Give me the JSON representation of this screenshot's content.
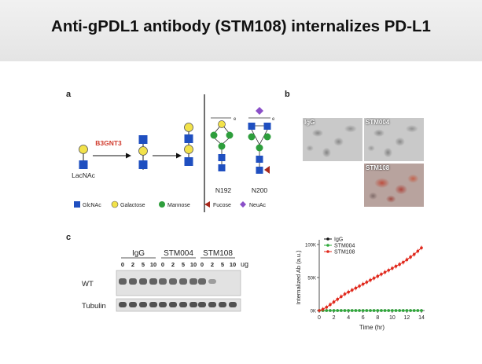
{
  "title": "Anti-gPDL1 antibody (STM108) internalizes PD-L1",
  "panel_a": {
    "label": "a",
    "enzyme": "B3GNT3",
    "substrate": "LacNAc",
    "sites": [
      "N192",
      "N200"
    ],
    "legend": [
      {
        "name": "GlcNAc",
        "color": "#1f4fc0",
        "icon": "square"
      },
      {
        "name": "Galactose",
        "color": "#f2e24a",
        "icon": "circle"
      },
      {
        "name": "Mannose",
        "color": "#2e9e3c",
        "icon": "circle"
      },
      {
        "name": "Fucose",
        "color": "#a8281c",
        "icon": "triangle"
      },
      {
        "name": "NeuAc",
        "color": "#8a4fc8",
        "icon": "diamond"
      }
    ]
  },
  "panel_b": {
    "label": "b",
    "images": [
      "IgG",
      "STM004",
      "STM108"
    ]
  },
  "panel_c": {
    "label": "c",
    "blot": {
      "groups": [
        "IgG",
        "STM004",
        "STM108"
      ],
      "doses": [
        "0",
        "2",
        "5",
        "10"
      ],
      "unit": "ug",
      "rows": [
        "WT",
        "Tubulin"
      ]
    }
  },
  "chart_data": {
    "type": "line",
    "ylabel": "Internalized Ab (a.u.)",
    "xlabel": "Time (hr)",
    "xlim": [
      0,
      14
    ],
    "ylim": [
      0,
      100000
    ],
    "xticks": [
      "0",
      "2",
      "4",
      "6",
      "8",
      "10",
      "12",
      "14"
    ],
    "yticks": [
      "0K",
      "50K",
      "100K"
    ],
    "x": [
      0,
      0.5,
      1,
      1.5,
      2,
      2.5,
      3,
      3.5,
      4,
      4.5,
      5,
      5.5,
      6,
      6.5,
      7,
      7.5,
      8,
      8.5,
      9,
      9.5,
      10,
      10.5,
      11,
      11.5,
      12,
      12.5,
      13,
      13.5,
      14
    ],
    "series": [
      {
        "name": "IgG",
        "color": "#111111",
        "values": [
          0,
          0,
          0,
          0,
          0,
          0,
          0,
          0,
          0,
          0,
          0,
          0,
          0,
          0,
          0,
          0,
          0,
          0,
          0,
          0,
          0,
          0,
          0,
          0,
          0,
          0,
          0,
          0,
          0
        ]
      },
      {
        "name": "STM004",
        "color": "#2eaa3a",
        "values": [
          0,
          0,
          0,
          0,
          0,
          0,
          0,
          0,
          0,
          0,
          0,
          0,
          0,
          0,
          0,
          0,
          0,
          0,
          0,
          0,
          0,
          0,
          0,
          0,
          0,
          0,
          0,
          0,
          0
        ]
      },
      {
        "name": "STM108",
        "color": "#e0281c",
        "values": [
          0,
          2000,
          5000,
          9000,
          13000,
          17000,
          21000,
          25000,
          28000,
          31000,
          34000,
          37000,
          40000,
          43000,
          46000,
          49000,
          52000,
          55000,
          58000,
          61000,
          64000,
          67000,
          70000,
          73000,
          77000,
          81000,
          85000,
          90000,
          95000
        ]
      }
    ],
    "legend_position": "top-left"
  }
}
